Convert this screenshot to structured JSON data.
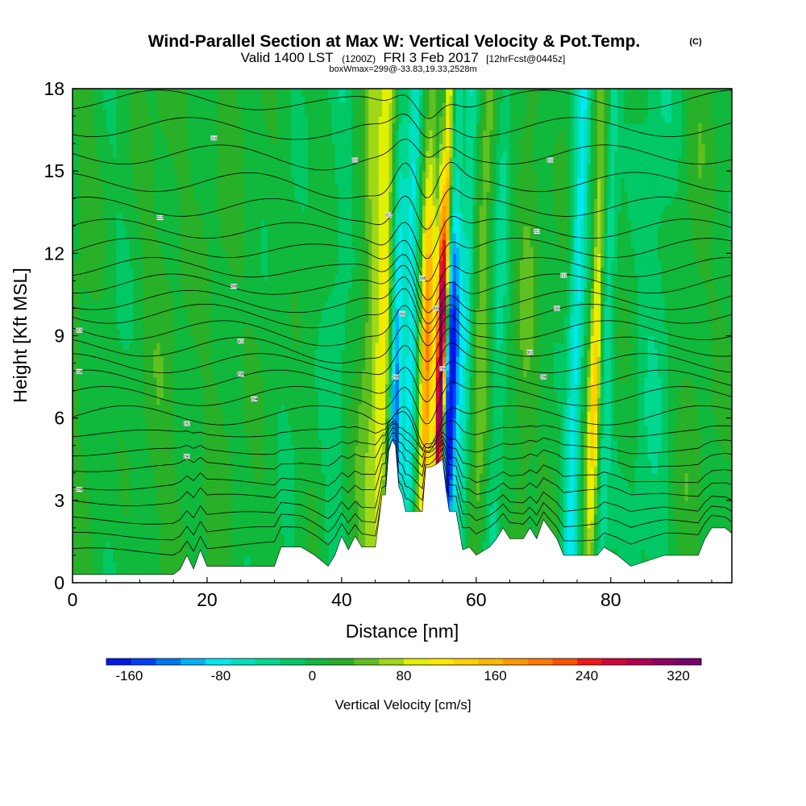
{
  "chart_data": {
    "type": "heatmap",
    "title": "Wind-Parallel Section at Max W: Vertical Velocity & Pot.Temp.",
    "title_mark": "(C)",
    "subtitle_main": "Valid 1400 LST",
    "subtitle_utc": "(1200Z)",
    "subtitle_date": "FRI 3 Feb 2017",
    "subtitle_fcst": "[12hrFcst@0445z]",
    "subtitle2": "boxWmax=299@-33.83,19.33,2528m",
    "xlabel": "Distance [nm]",
    "ylabel": "Height [Kft MSL]",
    "xlim": [
      0,
      98
    ],
    "ylim": [
      0,
      18
    ],
    "x_ticks": [
      0,
      20,
      40,
      60,
      80
    ],
    "x_tick_labels": [
      "0",
      "20",
      "40",
      "60",
      "80"
    ],
    "y_ticks": [
      0,
      3,
      6,
      9,
      12,
      15,
      18
    ],
    "y_tick_labels": [
      "0",
      "3",
      "6",
      "9",
      "12",
      "15",
      "18"
    ],
    "grid": false,
    "colorbar": {
      "label": "Vertical Velocity [cm/s]",
      "tick_labels": [
        "-160",
        "-80",
        "0",
        "80",
        "160",
        "240",
        "320"
      ],
      "tick_values": [
        -160,
        -80,
        0,
        80,
        160,
        240,
        320
      ],
      "min": -180,
      "max": 340,
      "colors": [
        "#0018e8",
        "#0040f8",
        "#0078f0",
        "#00b0f8",
        "#00e8f0",
        "#00e0c0",
        "#00d890",
        "#00c864",
        "#10b83c",
        "#28b028",
        "#60c020",
        "#a0d818",
        "#e0f000",
        "#ffe800",
        "#ffd000",
        "#ffb800",
        "#ff9800",
        "#ff7800",
        "#ff5000",
        "#f01818",
        "#d00838",
        "#b00050",
        "#900060",
        "#780070"
      ]
    },
    "terrain_kft": [
      [
        0,
        0.3
      ],
      [
        8,
        0.3
      ],
      [
        15,
        0.3
      ],
      [
        16,
        0.5
      ],
      [
        17,
        1.0
      ],
      [
        18,
        0.5
      ],
      [
        19,
        1.2
      ],
      [
        20,
        0.6
      ],
      [
        25,
        0.6
      ],
      [
        30,
        0.6
      ],
      [
        31,
        1.3
      ],
      [
        34,
        1.3
      ],
      [
        36,
        1.0
      ],
      [
        38,
        0.6
      ],
      [
        39,
        1.0
      ],
      [
        40,
        1.7
      ],
      [
        41,
        1.2
      ],
      [
        42,
        1.7
      ],
      [
        43,
        1.3
      ],
      [
        45,
        1.3
      ],
      [
        45.5,
        2.2
      ],
      [
        46,
        3.2
      ],
      [
        46.5,
        3.2
      ],
      [
        47,
        4.8
      ],
      [
        47.5,
        5.2
      ],
      [
        48,
        5.0
      ],
      [
        48.5,
        3.5
      ],
      [
        49,
        3.2
      ],
      [
        49.5,
        2.6
      ],
      [
        51,
        2.6
      ],
      [
        52,
        2.6
      ],
      [
        52.5,
        4.2
      ],
      [
        53,
        4.2
      ],
      [
        54,
        4.3
      ],
      [
        55,
        4.5
      ],
      [
        55.5,
        3.4
      ],
      [
        56,
        2.6
      ],
      [
        57,
        2.6
      ],
      [
        58,
        1.2
      ],
      [
        59,
        1.3
      ],
      [
        60,
        1.0
      ],
      [
        62,
        1.3
      ],
      [
        63,
        1.6
      ],
      [
        64,
        2.0
      ],
      [
        65,
        1.6
      ],
      [
        67,
        1.6
      ],
      [
        68,
        2.0
      ],
      [
        69,
        1.6
      ],
      [
        70,
        2.3
      ],
      [
        72,
        1.6
      ],
      [
        73,
        1.0
      ],
      [
        78,
        1.0
      ],
      [
        79,
        1.3
      ],
      [
        81,
        1.0
      ],
      [
        83,
        0.6
      ],
      [
        88,
        1.0
      ],
      [
        93,
        1.0
      ],
      [
        94,
        1.6
      ],
      [
        95,
        2.0
      ],
      [
        97,
        2.0
      ],
      [
        98,
        1.8
      ]
    ],
    "theta_isentropes_kft": [
      0.9,
      1.5,
      2.1,
      2.8,
      3.4,
      4.1,
      4.7,
      5.4,
      6.1,
      6.8,
      7.4,
      8.0,
      8.6,
      9.2,
      9.8,
      10.3,
      10.9,
      11.5,
      12.2,
      12.9,
      13.7,
      14.6,
      15.6,
      16.6,
      17.6
    ],
    "contour_labels": [
      {
        "x": 21,
        "y": 16.2,
        "text": "316"
      },
      {
        "x": 42,
        "y": 15.4,
        "text": "318"
      },
      {
        "x": 71,
        "y": 15.4,
        "text": "316"
      },
      {
        "x": 13,
        "y": 13.3,
        "text": "312"
      },
      {
        "x": 47,
        "y": 13.4,
        "text": "312"
      },
      {
        "x": 69,
        "y": 12.8,
        "text": "312"
      },
      {
        "x": 24,
        "y": 10.8,
        "text": "308"
      },
      {
        "x": 52,
        "y": 11.1,
        "text": "308"
      },
      {
        "x": 73,
        "y": 11.2,
        "text": "310"
      },
      {
        "x": 49,
        "y": 9.8,
        "text": "306"
      },
      {
        "x": 54,
        "y": 10.0,
        "text": "306"
      },
      {
        "x": 72,
        "y": 10.0,
        "text": "306"
      },
      {
        "x": 1,
        "y": 9.2,
        "text": "302"
      },
      {
        "x": 25,
        "y": 8.8,
        "text": "302"
      },
      {
        "x": 68,
        "y": 8.4,
        "text": "302"
      },
      {
        "x": 1,
        "y": 7.7,
        "text": "298"
      },
      {
        "x": 25,
        "y": 7.6,
        "text": "298"
      },
      {
        "x": 48,
        "y": 7.5,
        "text": "298"
      },
      {
        "x": 55,
        "y": 7.8,
        "text": "298"
      },
      {
        "x": 70,
        "y": 7.5,
        "text": "298"
      },
      {
        "x": 27,
        "y": 6.7,
        "text": "294"
      },
      {
        "x": 17,
        "y": 5.8,
        "text": "292"
      },
      {
        "x": 17,
        "y": 4.6,
        "text": "290"
      },
      {
        "x": 1,
        "y": 3.4,
        "text": "288"
      }
    ],
    "velocity_features": [
      {
        "x": 0,
        "w": 3.0,
        "value": 12
      },
      {
        "x": 6,
        "w": 2.5,
        "value": -10
      },
      {
        "x": 13,
        "w": 3.0,
        "value": 15
      },
      {
        "x": 22,
        "w": 2.5,
        "value": 10
      },
      {
        "x": 32,
        "w": 2.5,
        "value": -8
      },
      {
        "x": 39,
        "w": 2.0,
        "value": -25
      },
      {
        "x": 44,
        "w": 1.6,
        "value": 45
      },
      {
        "x": 46,
        "w": 1.2,
        "value": 80
      },
      {
        "x": 48,
        "w": 1.0,
        "value": -120
      },
      {
        "x": 50,
        "w": 1.0,
        "value": -80
      },
      {
        "x": 52.5,
        "w": 1.0,
        "value": 150
      },
      {
        "x": 54.6,
        "w": 0.7,
        "value": 300
      },
      {
        "x": 56,
        "w": 1.1,
        "value": -170
      },
      {
        "x": 58,
        "w": 1.0,
        "value": -60
      },
      {
        "x": 60.5,
        "w": 1.2,
        "value": 40
      },
      {
        "x": 63,
        "w": 1.2,
        "value": -40
      },
      {
        "x": 67,
        "w": 1.5,
        "value": 25
      },
      {
        "x": 74.5,
        "w": 1.2,
        "value": -85
      },
      {
        "x": 77.5,
        "w": 0.9,
        "value": 110
      },
      {
        "x": 79,
        "w": 1.2,
        "value": -50
      },
      {
        "x": 86,
        "w": 3.0,
        "value": -30
      },
      {
        "x": 92,
        "w": 2.0,
        "value": 15
      }
    ]
  }
}
